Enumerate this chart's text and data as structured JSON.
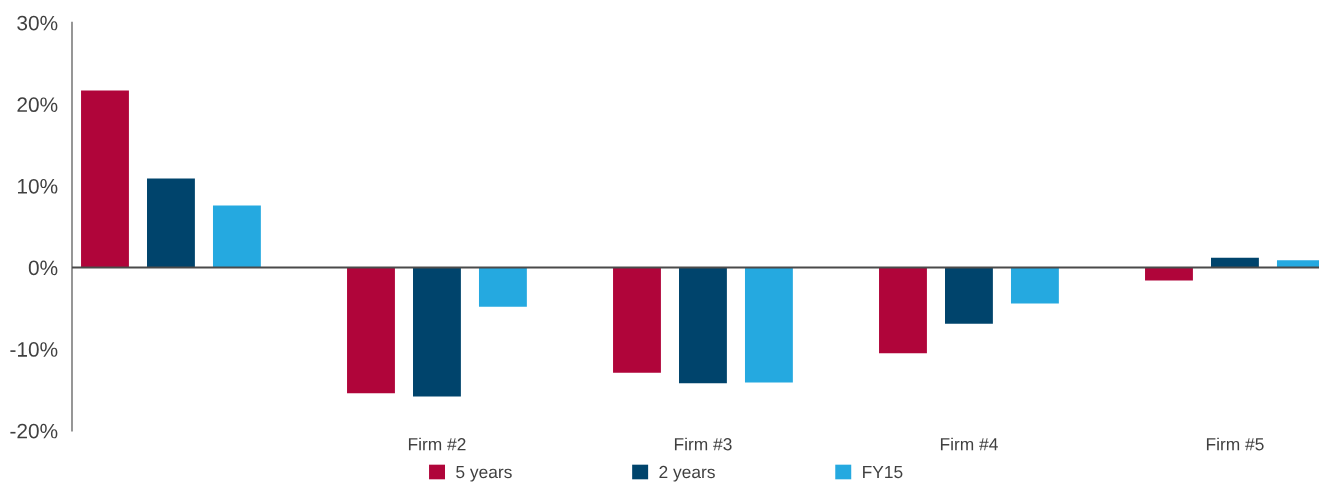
{
  "chart_data": {
    "type": "bar",
    "categories": [
      null,
      "Firm #2",
      "Firm #3",
      "Firm #4",
      "Firm #5"
    ],
    "series": [
      {
        "name": "5 years",
        "color": "#b0053a",
        "values": [
          21.7,
          -15.4,
          -12.9,
          -10.5,
          -1.6
        ]
      },
      {
        "name": "2 years",
        "color": "#00446c",
        "values": [
          10.9,
          -15.8,
          -14.2,
          -6.9,
          1.2
        ]
      },
      {
        "name": "FY15",
        "color": "#25a9e0",
        "values": [
          7.6,
          -4.8,
          -14.1,
          -4.4,
          0.9
        ]
      }
    ],
    "ylim": [
      -20,
      30
    ],
    "yticks": [
      {
        "value": -20,
        "label": "-20%"
      },
      {
        "value": -10,
        "label": "-10%"
      },
      {
        "value": 0,
        "label": "0%"
      },
      {
        "value": 10,
        "label": "10%"
      },
      {
        "value": 20,
        "label": "20%"
      },
      {
        "value": 30,
        "label": "30%"
      }
    ],
    "ref_lines": [
      {
        "axis": "y",
        "value": 0,
        "color": "#4a4a4a"
      }
    ],
    "legend": "bottom"
  }
}
